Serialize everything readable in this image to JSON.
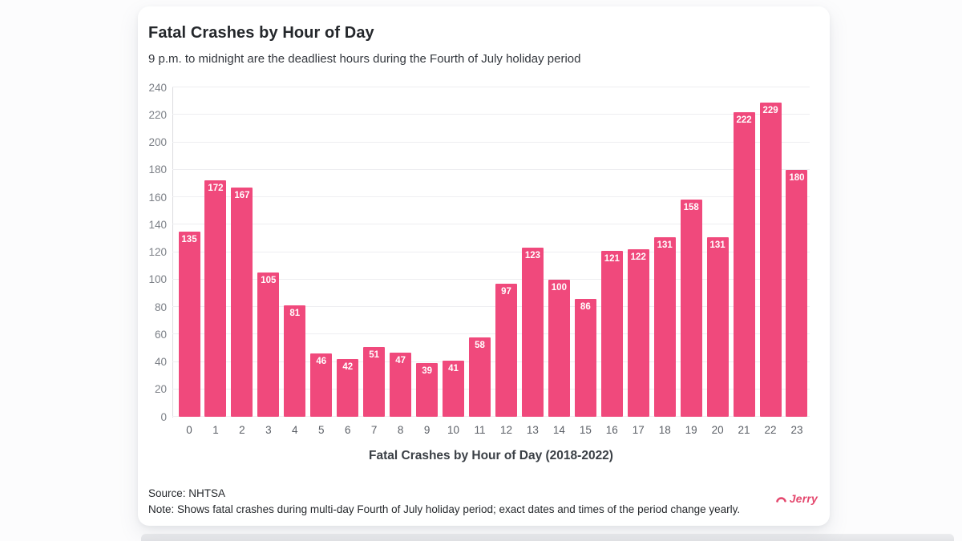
{
  "chart_data": {
    "type": "bar",
    "title": "Fatal Crashes by Hour of Day",
    "subtitle": "9 p.m. to midnight are the deadliest hours during the Fourth of July holiday period",
    "categories": [
      "0",
      "1",
      "2",
      "3",
      "4",
      "5",
      "6",
      "7",
      "8",
      "9",
      "10",
      "11",
      "12",
      "13",
      "14",
      "15",
      "16",
      "17",
      "18",
      "19",
      "20",
      "21",
      "22",
      "23"
    ],
    "values": [
      135,
      172,
      167,
      105,
      81,
      46,
      42,
      51,
      47,
      39,
      41,
      58,
      97,
      123,
      100,
      86,
      121,
      122,
      131,
      158,
      131,
      222,
      229,
      180
    ],
    "xlabel": "Fatal Crashes by Hour of Day (2018-2022)",
    "ylabel": "",
    "ylim": [
      0,
      240
    ],
    "ytick_step": 20,
    "grid": true,
    "legend": "none",
    "bar_color": "#f0497c",
    "value_label_color": "#ffffff"
  },
  "footer": {
    "source": "Source: NHTSA",
    "note": "Note: Shows fatal crashes during multi-day Fourth of July holiday period; exact dates and times of the period change yearly.",
    "brand": "Jerry"
  }
}
